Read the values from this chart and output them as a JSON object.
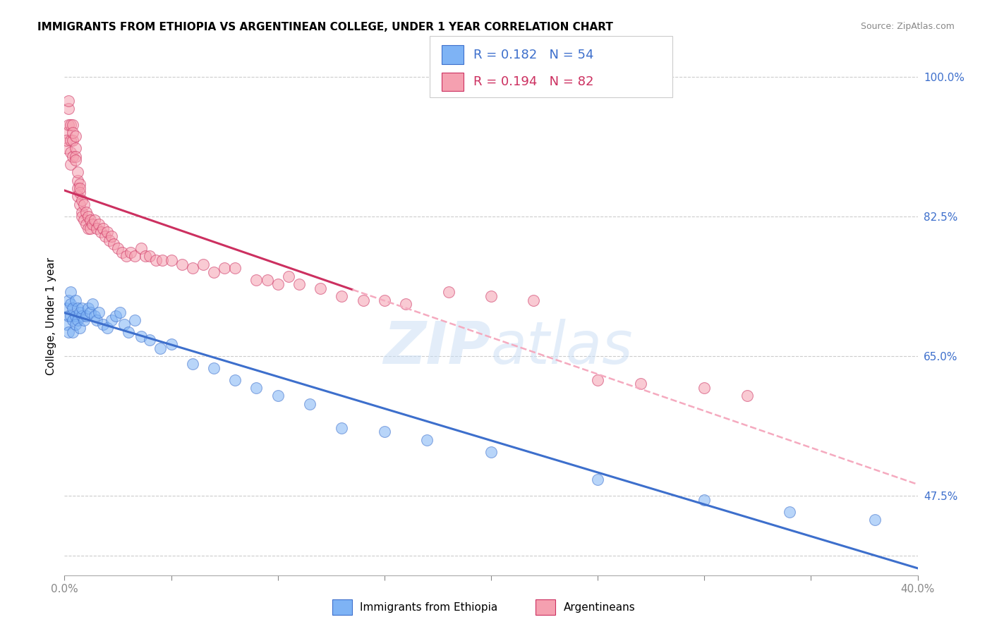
{
  "title": "IMMIGRANTS FROM ETHIOPIA VS ARGENTINEAN COLLEGE, UNDER 1 YEAR CORRELATION CHART",
  "source": "Source: ZipAtlas.com",
  "ylabel": "College, Under 1 year",
  "legend_blue_r": "0.182",
  "legend_blue_n": "54",
  "legend_pink_r": "0.194",
  "legend_pink_n": "82",
  "legend_label_blue": "Immigrants from Ethiopia",
  "legend_label_pink": "Argentineans",
  "blue_color": "#7EB3F5",
  "pink_color": "#F5A0B0",
  "blue_line_color": "#3D6FCC",
  "pink_line_color": "#CC3060",
  "pink_dash_color": "#F5AABF",
  "xmin": 0.0,
  "xmax": 0.4,
  "ymin": 0.375,
  "ymax": 1.025,
  "ytick_vals": [
    0.4,
    0.475,
    0.65,
    0.825,
    1.0
  ],
  "ytick_labels": [
    "",
    "47.5%",
    "65.0%",
    "82.5%",
    "100.0%"
  ],
  "xtick_vals": [
    0.0,
    0.05,
    0.1,
    0.15,
    0.2,
    0.25,
    0.3,
    0.35,
    0.4
  ],
  "blue_scatter_x": [
    0.001,
    0.001,
    0.002,
    0.002,
    0.002,
    0.003,
    0.003,
    0.003,
    0.004,
    0.004,
    0.004,
    0.005,
    0.005,
    0.005,
    0.006,
    0.006,
    0.007,
    0.007,
    0.008,
    0.008,
    0.009,
    0.01,
    0.011,
    0.012,
    0.013,
    0.014,
    0.015,
    0.016,
    0.018,
    0.02,
    0.022,
    0.024,
    0.026,
    0.028,
    0.03,
    0.033,
    0.036,
    0.04,
    0.045,
    0.05,
    0.06,
    0.07,
    0.08,
    0.09,
    0.1,
    0.115,
    0.13,
    0.15,
    0.17,
    0.2,
    0.25,
    0.3,
    0.34,
    0.38
  ],
  "blue_scatter_y": [
    0.71,
    0.69,
    0.72,
    0.7,
    0.68,
    0.73,
    0.7,
    0.715,
    0.71,
    0.695,
    0.68,
    0.72,
    0.7,
    0.69,
    0.71,
    0.695,
    0.705,
    0.685,
    0.7,
    0.71,
    0.695,
    0.7,
    0.71,
    0.705,
    0.715,
    0.7,
    0.695,
    0.705,
    0.69,
    0.685,
    0.695,
    0.7,
    0.705,
    0.69,
    0.68,
    0.695,
    0.675,
    0.67,
    0.66,
    0.665,
    0.64,
    0.635,
    0.62,
    0.61,
    0.6,
    0.59,
    0.56,
    0.555,
    0.545,
    0.53,
    0.495,
    0.47,
    0.455,
    0.445
  ],
  "pink_scatter_x": [
    0.001,
    0.001,
    0.001,
    0.002,
    0.002,
    0.002,
    0.003,
    0.003,
    0.003,
    0.003,
    0.004,
    0.004,
    0.004,
    0.004,
    0.005,
    0.005,
    0.005,
    0.005,
    0.006,
    0.006,
    0.006,
    0.006,
    0.007,
    0.007,
    0.007,
    0.007,
    0.008,
    0.008,
    0.008,
    0.009,
    0.009,
    0.01,
    0.01,
    0.011,
    0.011,
    0.012,
    0.012,
    0.013,
    0.014,
    0.015,
    0.016,
    0.017,
    0.018,
    0.019,
    0.02,
    0.021,
    0.022,
    0.023,
    0.025,
    0.027,
    0.029,
    0.031,
    0.033,
    0.036,
    0.038,
    0.04,
    0.043,
    0.046,
    0.05,
    0.055,
    0.06,
    0.065,
    0.07,
    0.075,
    0.08,
    0.09,
    0.095,
    0.1,
    0.105,
    0.11,
    0.12,
    0.13,
    0.14,
    0.15,
    0.16,
    0.18,
    0.2,
    0.22,
    0.25,
    0.27,
    0.3,
    0.32
  ],
  "pink_scatter_y": [
    0.93,
    0.91,
    0.92,
    0.94,
    0.96,
    0.97,
    0.94,
    0.92,
    0.905,
    0.89,
    0.94,
    0.92,
    0.9,
    0.93,
    0.91,
    0.9,
    0.925,
    0.895,
    0.87,
    0.86,
    0.85,
    0.88,
    0.865,
    0.855,
    0.84,
    0.86,
    0.845,
    0.83,
    0.825,
    0.84,
    0.82,
    0.83,
    0.815,
    0.825,
    0.81,
    0.82,
    0.81,
    0.815,
    0.82,
    0.81,
    0.815,
    0.805,
    0.81,
    0.8,
    0.805,
    0.795,
    0.8,
    0.79,
    0.785,
    0.78,
    0.775,
    0.78,
    0.775,
    0.785,
    0.775,
    0.775,
    0.77,
    0.77,
    0.77,
    0.765,
    0.76,
    0.765,
    0.755,
    0.76,
    0.76,
    0.745,
    0.745,
    0.74,
    0.75,
    0.74,
    0.735,
    0.725,
    0.72,
    0.72,
    0.715,
    0.73,
    0.725,
    0.72,
    0.62,
    0.615,
    0.61,
    0.6
  ]
}
